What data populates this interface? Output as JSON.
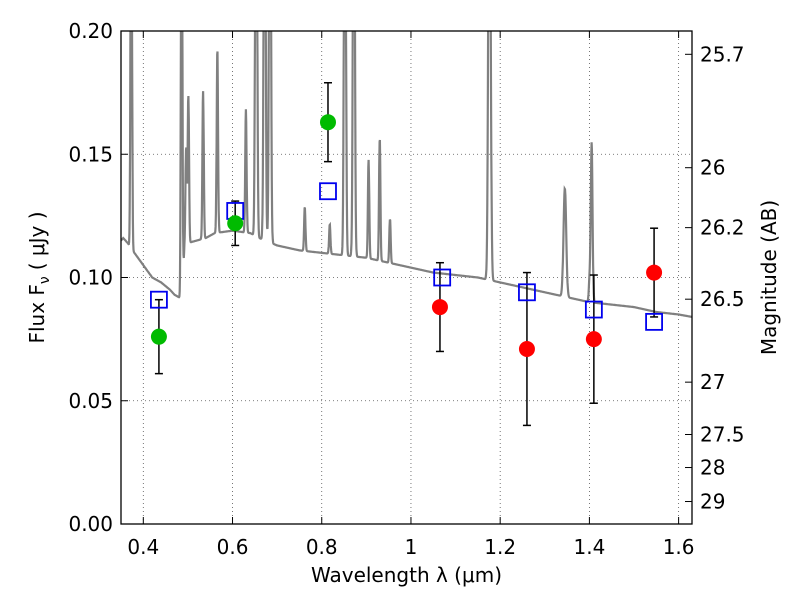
{
  "chart_data": {
    "type": "scatter",
    "xlabel": "Wavelength  λ (μm)",
    "ylabel_left": "Flux  F",
    "ylabel_left_sub": "ν",
    "ylabel_left_unit": "( μJy )",
    "ylabel_right": "Magnitude (AB)",
    "xlim": [
      0.35,
      1.63
    ],
    "ylim": [
      0.0,
      0.2
    ],
    "grid": true,
    "x_ticks": [
      {
        "v": 0.4,
        "label": "0.4"
      },
      {
        "v": 0.6,
        "label": "0.6"
      },
      {
        "v": 0.8,
        "label": "0.8"
      },
      {
        "v": 1.0,
        "label": "1"
      },
      {
        "v": 1.2,
        "label": "1.2"
      },
      {
        "v": 1.4,
        "label": "1.4"
      },
      {
        "v": 1.6,
        "label": "1.6"
      }
    ],
    "y_ticks": [
      {
        "v": 0.0,
        "label": "0.00"
      },
      {
        "v": 0.05,
        "label": "0.05"
      },
      {
        "v": 0.1,
        "label": "0.10"
      },
      {
        "v": 0.15,
        "label": "0.15"
      },
      {
        "v": 0.2,
        "label": "0.20"
      }
    ],
    "mag_ticks": [
      {
        "mag": 25.7,
        "label": "25.7"
      },
      {
        "mag": 26,
        "label": "26"
      },
      {
        "mag": 26.2,
        "label": "26.2"
      },
      {
        "mag": 26.5,
        "label": "26.5"
      },
      {
        "mag": 27,
        "label": "27"
      },
      {
        "mag": 27.5,
        "label": "27.5"
      },
      {
        "mag": 28,
        "label": "28"
      },
      {
        "mag": 29,
        "label": "29"
      }
    ],
    "observed": [
      {
        "x": 0.435,
        "y": 0.076,
        "err": 0.015,
        "color": "#00bb00"
      },
      {
        "x": 0.606,
        "y": 0.122,
        "err": 0.009,
        "color": "#00bb00"
      },
      {
        "x": 0.814,
        "y": 0.163,
        "err": 0.016,
        "color": "#00bb00"
      },
      {
        "x": 1.065,
        "y": 0.088,
        "err": 0.018,
        "color": "#ff0000"
      },
      {
        "x": 1.26,
        "y": 0.071,
        "err": 0.031,
        "color": "#ff0000"
      },
      {
        "x": 1.41,
        "y": 0.075,
        "err": 0.026,
        "color": "#ff0000"
      },
      {
        "x": 1.545,
        "y": 0.102,
        "err": 0.018,
        "color": "#ff0000"
      }
    ],
    "model_points": [
      {
        "x": 0.435,
        "y": 0.091
      },
      {
        "x": 0.606,
        "y": 0.127
      },
      {
        "x": 0.814,
        "y": 0.135
      },
      {
        "x": 1.07,
        "y": 0.1
      },
      {
        "x": 1.26,
        "y": 0.094
      },
      {
        "x": 1.41,
        "y": 0.087
      },
      {
        "x": 1.545,
        "y": 0.082
      }
    ],
    "spectrum_continuum": [
      [
        0.35,
        0.115
      ],
      [
        0.355,
        0.116
      ],
      [
        0.365,
        0.114
      ],
      [
        0.38,
        0.11
      ],
      [
        0.4,
        0.105
      ],
      [
        0.42,
        0.1
      ],
      [
        0.44,
        0.098
      ],
      [
        0.46,
        0.095
      ],
      [
        0.47,
        0.093
      ],
      [
        0.48,
        0.092
      ],
      [
        0.487,
        0.09
      ],
      [
        0.492,
        0.112
      ],
      [
        0.5,
        0.114
      ],
      [
        0.52,
        0.115
      ],
      [
        0.54,
        0.116
      ],
      [
        0.56,
        0.118
      ],
      [
        0.6,
        0.119
      ],
      [
        0.64,
        0.118
      ],
      [
        0.66,
        0.116
      ],
      [
        0.7,
        0.113
      ],
      [
        0.75,
        0.111
      ],
      [
        0.8,
        0.11
      ],
      [
        0.85,
        0.109
      ],
      [
        0.9,
        0.108
      ],
      [
        0.95,
        0.106
      ],
      [
        1.0,
        0.104
      ],
      [
        1.05,
        0.102
      ],
      [
        1.1,
        0.101
      ],
      [
        1.15,
        0.1
      ],
      [
        1.2,
        0.098
      ],
      [
        1.25,
        0.096
      ],
      [
        1.3,
        0.094
      ],
      [
        1.35,
        0.092
      ],
      [
        1.4,
        0.09
      ],
      [
        1.45,
        0.089
      ],
      [
        1.5,
        0.088
      ],
      [
        1.55,
        0.086
      ],
      [
        1.6,
        0.085
      ],
      [
        1.63,
        0.084
      ]
    ],
    "spectrum_lines": [
      {
        "x": 0.373,
        "h": 0.21,
        "w": 0.003
      },
      {
        "x": 0.486,
        "h": 0.21,
        "w": 0.003
      },
      {
        "x": 0.496,
        "h": 0.04,
        "w": 0.003
      },
      {
        "x": 0.501,
        "h": 0.06,
        "w": 0.003
      },
      {
        "x": 0.534,
        "h": 0.06,
        "w": 0.003
      },
      {
        "x": 0.566,
        "h": 0.075,
        "w": 0.003
      },
      {
        "x": 0.63,
        "h": 0.05,
        "w": 0.003
      },
      {
        "x": 0.653,
        "h": 0.21,
        "w": 0.004
      },
      {
        "x": 0.672,
        "h": 0.21,
        "w": 0.004
      },
      {
        "x": 0.684,
        "h": 0.21,
        "w": 0.004
      },
      {
        "x": 0.762,
        "h": 0.018,
        "w": 0.003
      },
      {
        "x": 0.818,
        "h": 0.012,
        "w": 0.003
      },
      {
        "x": 0.852,
        "h": 0.21,
        "w": 0.004
      },
      {
        "x": 0.872,
        "h": 0.21,
        "w": 0.004
      },
      {
        "x": 0.905,
        "h": 0.04,
        "w": 0.003
      },
      {
        "x": 0.93,
        "h": 0.05,
        "w": 0.003
      },
      {
        "x": 0.953,
        "h": 0.018,
        "w": 0.003
      },
      {
        "x": 1.176,
        "h": 0.21,
        "w": 0.005
      },
      {
        "x": 1.345,
        "h": 0.044,
        "w": 0.006
      },
      {
        "x": 1.4,
        "h": 0.008,
        "w": 0.003
      },
      {
        "x": 1.405,
        "h": 0.065,
        "w": 0.004
      }
    ]
  }
}
